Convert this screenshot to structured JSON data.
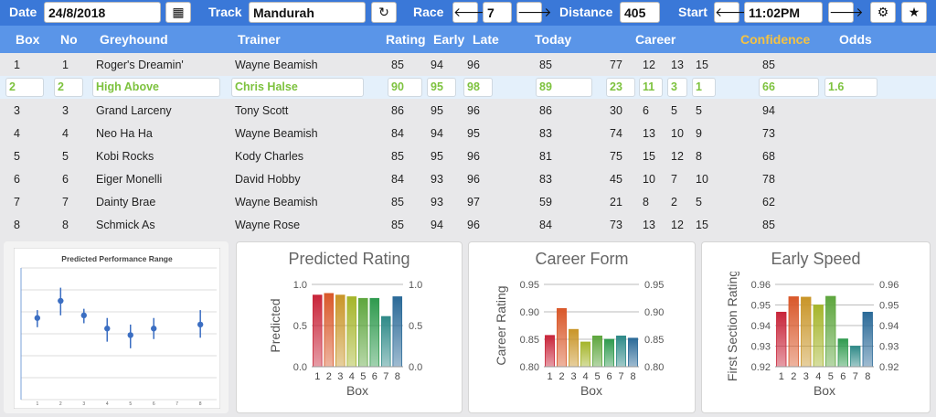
{
  "toolbar": {
    "date_label": "Date",
    "date_value": "24/8/2018",
    "track_label": "Track",
    "track_value": "Mandurah",
    "race_label": "Race",
    "race_value": "7",
    "distance_label": "Distance",
    "distance_value": "405",
    "start_label": "Start",
    "start_value": "11:02PM"
  },
  "columns": [
    "Box",
    "No",
    "Greyhound",
    "Trainer",
    "Rating",
    "Early",
    "Late",
    "Today",
    "Career",
    "Confidence",
    "Odds"
  ],
  "rows": [
    {
      "box": "1",
      "no": "1",
      "dog": "Roger's Dreamin'",
      "trainer": "Wayne Beamish",
      "rating": "85",
      "early": "94",
      "late": "96",
      "today": "85",
      "c1": "77",
      "c2": "12",
      "c3": "13",
      "c4": "15",
      "conf": "85",
      "odds": ""
    },
    {
      "box": "2",
      "no": "2",
      "dog": "High Above",
      "trainer": "Chris Halse",
      "rating": "90",
      "early": "95",
      "late": "98",
      "today": "89",
      "c1": "23",
      "c2": "11",
      "c3": "3",
      "c4": "1",
      "conf": "66",
      "odds": "1.6"
    },
    {
      "box": "3",
      "no": "3",
      "dog": "Grand Larceny",
      "trainer": "Tony Scott",
      "rating": "86",
      "early": "95",
      "late": "96",
      "today": "86",
      "c1": "30",
      "c2": "6",
      "c3": "5",
      "c4": "5",
      "conf": "94",
      "odds": ""
    },
    {
      "box": "4",
      "no": "4",
      "dog": "Neo Ha Ha",
      "trainer": "Wayne Beamish",
      "rating": "84",
      "early": "94",
      "late": "95",
      "today": "83",
      "c1": "74",
      "c2": "13",
      "c3": "10",
      "c4": "9",
      "conf": "73",
      "odds": ""
    },
    {
      "box": "5",
      "no": "5",
      "dog": "Kobi Rocks",
      "trainer": "Kody Charles",
      "rating": "85",
      "early": "95",
      "late": "96",
      "today": "81",
      "c1": "75",
      "c2": "15",
      "c3": "12",
      "c4": "8",
      "conf": "68",
      "odds": ""
    },
    {
      "box": "6",
      "no": "6",
      "dog": "Eiger Monelli",
      "trainer": "David Hobby",
      "rating": "84",
      "early": "93",
      "late": "96",
      "today": "83",
      "c1": "45",
      "c2": "10",
      "c3": "7",
      "c4": "10",
      "conf": "78",
      "odds": ""
    },
    {
      "box": "7",
      "no": "7",
      "dog": "Dainty Brae",
      "trainer": "Wayne Beamish",
      "rating": "85",
      "early": "93",
      "late": "97",
      "today": "59",
      "c1": "21",
      "c2": "8",
      "c3": "2",
      "c4": "5",
      "conf": "62",
      "odds": ""
    },
    {
      "box": "8",
      "no": "8",
      "dog": "Schmick As",
      "trainer": "Wayne Rose",
      "rating": "85",
      "early": "94",
      "late": "96",
      "today": "84",
      "c1": "73",
      "c2": "13",
      "c3": "12",
      "c4": "15",
      "conf": "85",
      "odds": ""
    }
  ],
  "colors": {
    "accent": "#3a78d8",
    "header": "#5a95e8",
    "confidence": "#f5c242",
    "selected_text": "#7dc23e"
  },
  "chart_data": [
    {
      "type": "scatter",
      "title": "Predicted Performance Range",
      "categories": [
        "1",
        "2",
        "3",
        "4",
        "5",
        "6",
        "7",
        "8"
      ],
      "points": [
        {
          "x": 1,
          "y": 0.62,
          "lo": 0.55,
          "hi": 0.68
        },
        {
          "x": 2,
          "y": 0.75,
          "lo": 0.64,
          "hi": 0.85
        },
        {
          "x": 3,
          "y": 0.64,
          "lo": 0.58,
          "hi": 0.69
        },
        {
          "x": 4,
          "y": 0.54,
          "lo": 0.44,
          "hi": 0.62
        },
        {
          "x": 5,
          "y": 0.49,
          "lo": 0.39,
          "hi": 0.57
        },
        {
          "x": 6,
          "y": 0.54,
          "lo": 0.46,
          "hi": 0.62
        },
        {
          "x": 7,
          "y": null
        },
        {
          "x": 8,
          "y": 0.57,
          "lo": 0.47,
          "hi": 0.68
        }
      ]
    },
    {
      "type": "bar",
      "title": "Predicted Rating",
      "categories": [
        "1",
        "2",
        "3",
        "4",
        "5",
        "6",
        "7",
        "8"
      ],
      "values": [
        0.87,
        0.89,
        0.87,
        0.85,
        0.83,
        0.83,
        0.61,
        0.85
      ],
      "xlabel": "Box",
      "ylabel": "Predicted",
      "ylim": [
        0,
        1.0
      ],
      "ticks": [
        "0.0",
        "0.5",
        "1.0"
      ]
    },
    {
      "type": "bar",
      "title": "Career Form",
      "categories": [
        "1",
        "2",
        "3",
        "4",
        "5",
        "6",
        "7",
        "8"
      ],
      "values": [
        0.857,
        0.906,
        0.868,
        0.845,
        0.856,
        0.85,
        0.856,
        0.852
      ],
      "xlabel": "Box",
      "ylabel": "Career Rating",
      "ylim": [
        0.8,
        0.95
      ],
      "ticks": [
        "0.80",
        "0.85",
        "0.90",
        "0.95"
      ]
    },
    {
      "type": "bar",
      "title": "Early Speed",
      "categories": [
        "1",
        "2",
        "3",
        "4",
        "5",
        "6",
        "7",
        "8"
      ],
      "values": [
        0.9465,
        0.954,
        0.9538,
        0.95,
        0.9542,
        0.9335,
        0.93,
        0.9465
      ],
      "xlabel": "Box",
      "ylabel": "First Section Rating",
      "ylim": [
        0.92,
        0.96
      ],
      "ticks": [
        "0.92",
        "0.93",
        "0.94",
        "0.95",
        "0.96"
      ]
    }
  ]
}
